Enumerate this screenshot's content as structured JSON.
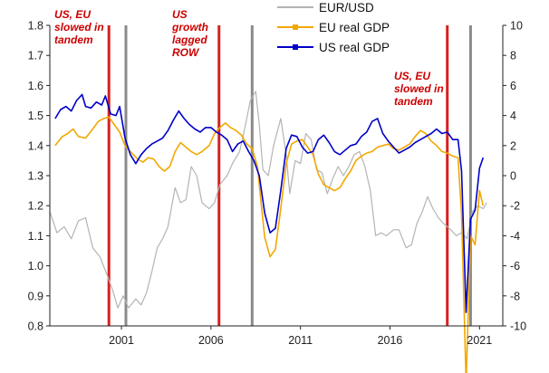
{
  "chart_data": {
    "type": "line",
    "title": "",
    "xlabel": "",
    "ylabel": "",
    "x_range": [
      1997.0,
      2022.3
    ],
    "x_ticks": [
      2001,
      2006,
      2011,
      2016,
      2021
    ],
    "x_tick_labels": [
      "2001",
      "2006",
      "2011",
      "2016",
      "2021"
    ],
    "y_left": {
      "range": [
        0.8,
        1.8
      ],
      "ticks": [
        0.8,
        0.9,
        1.0,
        1.1,
        1.2,
        1.3,
        1.4,
        1.5,
        1.6,
        1.7,
        1.8
      ],
      "tick_labels": [
        "0.8",
        "0.9",
        "1.0",
        "1.1",
        "1.2",
        "1.3",
        "1.4",
        "1.5",
        "1.6",
        "1.7",
        "1.8"
      ]
    },
    "y_right": {
      "range": [
        -10,
        10
      ],
      "ticks": [
        -10,
        -8,
        -6,
        -4,
        -2,
        0,
        2,
        4,
        6,
        8,
        10
      ],
      "tick_labels": [
        "-10",
        "-8",
        "-6",
        "-4",
        "-2",
        "0",
        "2",
        "4",
        "6",
        "8",
        "10"
      ]
    },
    "grid": false,
    "legend_position": "top-center",
    "series": [
      {
        "name": "EUR/USD",
        "axis": "left",
        "color": "#b4b4b4",
        "points": [
          [
            1997.0,
            1.18
          ],
          [
            1997.4,
            1.11
          ],
          [
            1997.8,
            1.13
          ],
          [
            1998.2,
            1.09
          ],
          [
            1998.6,
            1.15
          ],
          [
            1999.0,
            1.16
          ],
          [
            1999.4,
            1.06
          ],
          [
            1999.8,
            1.03
          ],
          [
            2000.2,
            0.97
          ],
          [
            2000.5,
            0.92
          ],
          [
            2000.8,
            0.86
          ],
          [
            2001.1,
            0.9
          ],
          [
            2001.4,
            0.86
          ],
          [
            2001.8,
            0.89
          ],
          [
            2002.1,
            0.87
          ],
          [
            2002.4,
            0.91
          ],
          [
            2002.7,
            0.98
          ],
          [
            2003.0,
            1.06
          ],
          [
            2003.3,
            1.09
          ],
          [
            2003.6,
            1.13
          ],
          [
            2004.0,
            1.26
          ],
          [
            2004.3,
            1.21
          ],
          [
            2004.6,
            1.22
          ],
          [
            2004.9,
            1.33
          ],
          [
            2005.2,
            1.3
          ],
          [
            2005.5,
            1.21
          ],
          [
            2005.9,
            1.19
          ],
          [
            2006.2,
            1.21
          ],
          [
            2006.5,
            1.27
          ],
          [
            2006.9,
            1.3
          ],
          [
            2007.2,
            1.34
          ],
          [
            2007.6,
            1.38
          ],
          [
            2007.9,
            1.46
          ],
          [
            2008.2,
            1.55
          ],
          [
            2008.5,
            1.58
          ],
          [
            2008.7,
            1.47
          ],
          [
            2008.9,
            1.32
          ],
          [
            2009.2,
            1.3
          ],
          [
            2009.5,
            1.4
          ],
          [
            2009.9,
            1.49
          ],
          [
            2010.2,
            1.37
          ],
          [
            2010.4,
            1.24
          ],
          [
            2010.7,
            1.35
          ],
          [
            2011.0,
            1.34
          ],
          [
            2011.3,
            1.44
          ],
          [
            2011.6,
            1.42
          ],
          [
            2011.9,
            1.32
          ],
          [
            2012.2,
            1.31
          ],
          [
            2012.5,
            1.24
          ],
          [
            2012.8,
            1.29
          ],
          [
            2013.1,
            1.33
          ],
          [
            2013.4,
            1.3
          ],
          [
            2013.7,
            1.33
          ],
          [
            2014.0,
            1.37
          ],
          [
            2014.3,
            1.38
          ],
          [
            2014.6,
            1.33
          ],
          [
            2014.9,
            1.25
          ],
          [
            2015.2,
            1.1
          ],
          [
            2015.5,
            1.11
          ],
          [
            2015.8,
            1.1
          ],
          [
            2016.2,
            1.12
          ],
          [
            2016.5,
            1.12
          ],
          [
            2016.9,
            1.06
          ],
          [
            2017.2,
            1.07
          ],
          [
            2017.5,
            1.14
          ],
          [
            2017.8,
            1.18
          ],
          [
            2018.1,
            1.23
          ],
          [
            2018.4,
            1.19
          ],
          [
            2018.7,
            1.16
          ],
          [
            2019.0,
            1.14
          ],
          [
            2019.4,
            1.12
          ],
          [
            2019.7,
            1.1
          ],
          [
            2020.0,
            1.11
          ],
          [
            2020.3,
            1.09
          ],
          [
            2020.6,
            1.18
          ],
          [
            2020.9,
            1.2
          ],
          [
            2021.2,
            1.19
          ],
          [
            2021.4,
            1.21
          ]
        ]
      },
      {
        "name": "EU real GDP",
        "axis": "right",
        "color": "#f2a800",
        "points": [
          [
            1997.3,
            2.0
          ],
          [
            1997.7,
            2.6
          ],
          [
            1998.0,
            2.8
          ],
          [
            1998.3,
            3.1
          ],
          [
            1998.6,
            2.6
          ],
          [
            1999.0,
            2.5
          ],
          [
            1999.4,
            3.1
          ],
          [
            1999.7,
            3.6
          ],
          [
            2000.0,
            3.8
          ],
          [
            2000.3,
            3.9
          ],
          [
            2000.6,
            3.4
          ],
          [
            2000.9,
            2.9
          ],
          [
            2001.2,
            2.0
          ],
          [
            2001.5,
            1.6
          ],
          [
            2001.9,
            1.1
          ],
          [
            2002.2,
            0.9
          ],
          [
            2002.5,
            1.2
          ],
          [
            2002.8,
            1.1
          ],
          [
            2003.1,
            0.6
          ],
          [
            2003.4,
            0.3
          ],
          [
            2003.7,
            0.6
          ],
          [
            2004.0,
            1.6
          ],
          [
            2004.3,
            2.2
          ],
          [
            2004.6,
            1.9
          ],
          [
            2004.9,
            1.6
          ],
          [
            2005.2,
            1.4
          ],
          [
            2005.5,
            1.6
          ],
          [
            2005.9,
            2.0
          ],
          [
            2006.2,
            2.8
          ],
          [
            2006.5,
            3.2
          ],
          [
            2006.8,
            3.5
          ],
          [
            2007.1,
            3.2
          ],
          [
            2007.4,
            3.0
          ],
          [
            2007.7,
            2.7
          ],
          [
            2008.0,
            2.1
          ],
          [
            2008.3,
            1.8
          ],
          [
            2008.6,
            0.6
          ],
          [
            2008.8,
            -1.8
          ],
          [
            2009.0,
            -4.1
          ],
          [
            2009.3,
            -5.4
          ],
          [
            2009.6,
            -4.9
          ],
          [
            2009.9,
            -2.2
          ],
          [
            2010.2,
            0.8
          ],
          [
            2010.5,
            2.1
          ],
          [
            2010.8,
            2.3
          ],
          [
            2011.1,
            2.4
          ],
          [
            2011.4,
            1.9
          ],
          [
            2011.7,
            1.4
          ],
          [
            2012.0,
            0.1
          ],
          [
            2012.3,
            -0.6
          ],
          [
            2012.6,
            -0.8
          ],
          [
            2012.9,
            -1.0
          ],
          [
            2013.2,
            -0.8
          ],
          [
            2013.5,
            -0.2
          ],
          [
            2013.8,
            0.3
          ],
          [
            2014.1,
            1.0
          ],
          [
            2014.4,
            1.3
          ],
          [
            2014.7,
            1.5
          ],
          [
            2015.0,
            1.6
          ],
          [
            2015.3,
            1.9
          ],
          [
            2015.6,
            2.0
          ],
          [
            2015.9,
            2.1
          ],
          [
            2016.2,
            1.8
          ],
          [
            2016.5,
            1.7
          ],
          [
            2016.8,
            1.9
          ],
          [
            2017.1,
            2.1
          ],
          [
            2017.4,
            2.6
          ],
          [
            2017.7,
            3.0
          ],
          [
            2018.0,
            2.8
          ],
          [
            2018.3,
            2.3
          ],
          [
            2018.6,
            2.0
          ],
          [
            2018.9,
            1.6
          ],
          [
            2019.2,
            1.5
          ],
          [
            2019.5,
            1.3
          ],
          [
            2019.8,
            1.2
          ],
          [
            2020.0,
            -2.6
          ],
          [
            2020.25,
            -13.8
          ],
          [
            2020.5,
            -4.0
          ],
          [
            2020.75,
            -4.6
          ],
          [
            2021.0,
            -1.0
          ],
          [
            2021.2,
            -2.0
          ]
        ]
      },
      {
        "name": "US real GDP",
        "axis": "right",
        "color": "#0000c8",
        "points": [
          [
            1997.3,
            3.8
          ],
          [
            1997.6,
            4.4
          ],
          [
            1997.9,
            4.6
          ],
          [
            1998.2,
            4.3
          ],
          [
            1998.5,
            5.0
          ],
          [
            1998.8,
            5.4
          ],
          [
            1999.0,
            4.6
          ],
          [
            1999.3,
            4.5
          ],
          [
            1999.6,
            4.9
          ],
          [
            1999.9,
            4.7
          ],
          [
            2000.1,
            5.3
          ],
          [
            2000.4,
            4.1
          ],
          [
            2000.7,
            4.0
          ],
          [
            2000.9,
            4.6
          ],
          [
            2001.2,
            2.5
          ],
          [
            2001.5,
            1.4
          ],
          [
            2001.8,
            0.8
          ],
          [
            2002.1,
            1.4
          ],
          [
            2002.4,
            1.8
          ],
          [
            2002.7,
            2.1
          ],
          [
            2003.0,
            2.3
          ],
          [
            2003.3,
            2.5
          ],
          [
            2003.6,
            3.0
          ],
          [
            2003.9,
            3.7
          ],
          [
            2004.2,
            4.3
          ],
          [
            2004.5,
            3.8
          ],
          [
            2004.8,
            3.4
          ],
          [
            2005.1,
            3.1
          ],
          [
            2005.4,
            2.9
          ],
          [
            2005.7,
            3.2
          ],
          [
            2006.0,
            3.2
          ],
          [
            2006.3,
            2.9
          ],
          [
            2006.6,
            2.7
          ],
          [
            2006.9,
            2.4
          ],
          [
            2007.2,
            1.6
          ],
          [
            2007.5,
            2.1
          ],
          [
            2007.8,
            2.3
          ],
          [
            2008.1,
            1.6
          ],
          [
            2008.4,
            1.0
          ],
          [
            2008.7,
            0.0
          ],
          [
            2009.0,
            -2.5
          ],
          [
            2009.3,
            -3.8
          ],
          [
            2009.6,
            -3.5
          ],
          [
            2009.9,
            -1.0
          ],
          [
            2010.2,
            1.8
          ],
          [
            2010.5,
            2.7
          ],
          [
            2010.8,
            2.6
          ],
          [
            2011.1,
            1.9
          ],
          [
            2011.4,
            1.5
          ],
          [
            2011.7,
            1.6
          ],
          [
            2012.0,
            2.4
          ],
          [
            2012.3,
            2.7
          ],
          [
            2012.6,
            2.2
          ],
          [
            2012.9,
            1.6
          ],
          [
            2013.2,
            1.4
          ],
          [
            2013.5,
            1.7
          ],
          [
            2013.8,
            2.0
          ],
          [
            2014.1,
            2.1
          ],
          [
            2014.4,
            2.6
          ],
          [
            2014.7,
            2.9
          ],
          [
            2015.0,
            3.6
          ],
          [
            2015.3,
            3.8
          ],
          [
            2015.6,
            2.8
          ],
          [
            2015.9,
            2.3
          ],
          [
            2016.2,
            1.9
          ],
          [
            2016.5,
            1.5
          ],
          [
            2016.8,
            1.7
          ],
          [
            2017.1,
            1.9
          ],
          [
            2017.4,
            2.2
          ],
          [
            2017.7,
            2.4
          ],
          [
            2018.0,
            2.6
          ],
          [
            2018.3,
            2.8
          ],
          [
            2018.6,
            3.1
          ],
          [
            2018.9,
            2.8
          ],
          [
            2019.2,
            2.9
          ],
          [
            2019.5,
            2.4
          ],
          [
            2019.8,
            2.4
          ],
          [
            2020.0,
            0.3
          ],
          [
            2020.25,
            -9.1
          ],
          [
            2020.5,
            -2.9
          ],
          [
            2020.75,
            -2.3
          ],
          [
            2021.0,
            0.5
          ],
          [
            2021.2,
            1.2
          ]
        ]
      }
    ],
    "vertical_markers": [
      {
        "x": 2000.3,
        "color": "#d62020",
        "label": "US, EU slowed in tandem"
      },
      {
        "x": 2001.25,
        "color": "#8a8a8a",
        "label": ""
      },
      {
        "x": 2006.45,
        "color": "#d62020",
        "label": "US growth lagged ROW"
      },
      {
        "x": 2008.3,
        "color": "#8a8a8a",
        "label": ""
      },
      {
        "x": 2019.2,
        "color": "#d62020",
        "label": "US, EU slowed in tandem"
      },
      {
        "x": 2020.5,
        "color": "#8a8a8a",
        "label": ""
      }
    ],
    "annotations": [
      {
        "lines": [
          "US, EU",
          "slowed in",
          "tandem"
        ]
      },
      {
        "lines": [
          "US",
          "growth",
          "lagged",
          "ROW"
        ]
      },
      {
        "lines": [
          "US, EU",
          "slowed in",
          "tandem"
        ]
      }
    ]
  }
}
